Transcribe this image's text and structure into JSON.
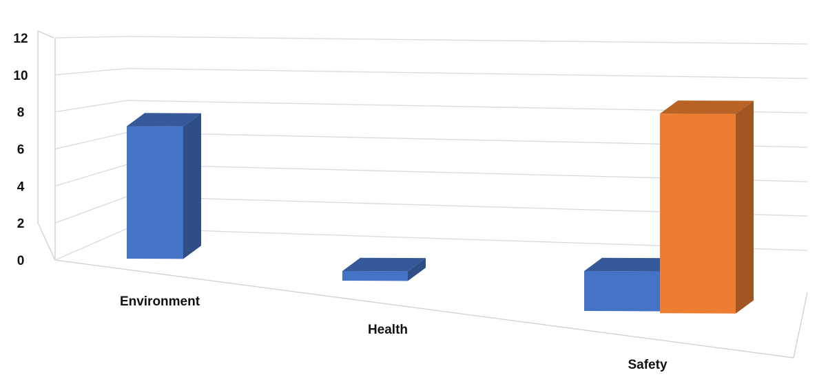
{
  "chart_data": {
    "type": "bar",
    "style": "3d-clustered-column",
    "title": "",
    "xlabel": "",
    "ylabel": "",
    "categories": [
      "Environment",
      "Health",
      "Safety"
    ],
    "series": [
      {
        "values": [
          7,
          0.5,
          2
        ],
        "color": "#4472C4"
      },
      {
        "values": [
          0,
          0,
          10
        ],
        "color": "#ED7D31"
      }
    ],
    "ylim": [
      0,
      12
    ],
    "yticks": [
      0,
      2,
      4,
      6,
      8,
      10,
      12
    ],
    "grid": true,
    "legend": "none"
  }
}
